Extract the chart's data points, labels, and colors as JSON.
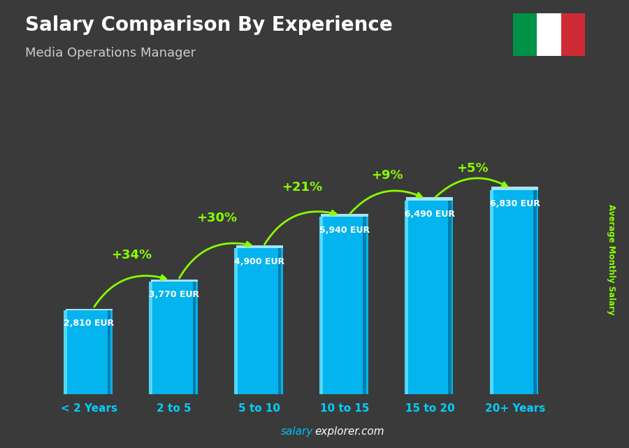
{
  "title": "Salary Comparison By Experience",
  "subtitle": "Media Operations Manager",
  "categories": [
    "< 2 Years",
    "2 to 5",
    "5 to 10",
    "10 to 15",
    "15 to 20",
    "20+ Years"
  ],
  "values": [
    2810,
    3770,
    4900,
    5940,
    6490,
    6830
  ],
  "bar_color_main": "#00BFFF",
  "bar_color_left": "#55DDFF",
  "bar_color_right": "#007AA8",
  "bar_color_top": "#AAEEFF",
  "bg_color": "#3a3a3a",
  "title_color": "#ffffff",
  "subtitle_color": "#cccccc",
  "label_color": "#ffffff",
  "pct_color": "#88FF00",
  "arrow_color": "#88FF00",
  "xlabel_color": "#00CFFF",
  "ylabel_text": "Average Monthly Salary",
  "ylabel_color": "#88FF00",
  "watermark_color_salary": "#00BFFF",
  "watermark_color_explorer": "#ffffff",
  "pct_changes": [
    "+34%",
    "+30%",
    "+21%",
    "+9%",
    "+5%"
  ],
  "ylim": [
    0,
    9000
  ],
  "flag_green": "#009246",
  "flag_white": "#ffffff",
  "flag_red": "#CE2B37"
}
